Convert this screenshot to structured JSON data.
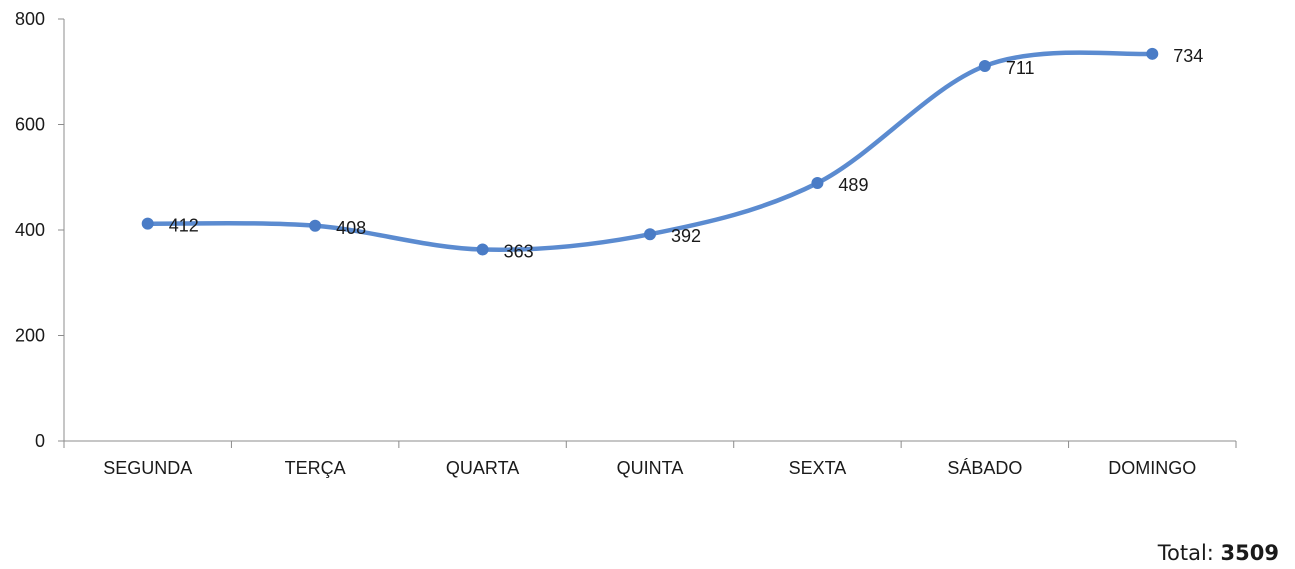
{
  "chart_data": {
    "type": "line",
    "smooth": true,
    "categories": [
      "SEGUNDA",
      "TERÇA",
      "QUARTA",
      "QUINTA",
      "SEXTA",
      "SÁBADO",
      "DOMINGO"
    ],
    "series": [
      {
        "values": [
          412,
          408,
          363,
          392,
          489,
          711,
          734
        ]
      }
    ],
    "data_labels": [
      "412",
      "408",
      "363",
      "392",
      "489",
      "711",
      "734"
    ],
    "ylim": [
      0,
      800
    ],
    "yticks": [
      "0",
      "200",
      "400",
      "600",
      "800"
    ],
    "grid": false,
    "legend": "none",
    "line_color": "#5b8bd0",
    "marker_color": "#4a7cc6"
  },
  "total": {
    "label": "Total:",
    "value": "3509"
  }
}
